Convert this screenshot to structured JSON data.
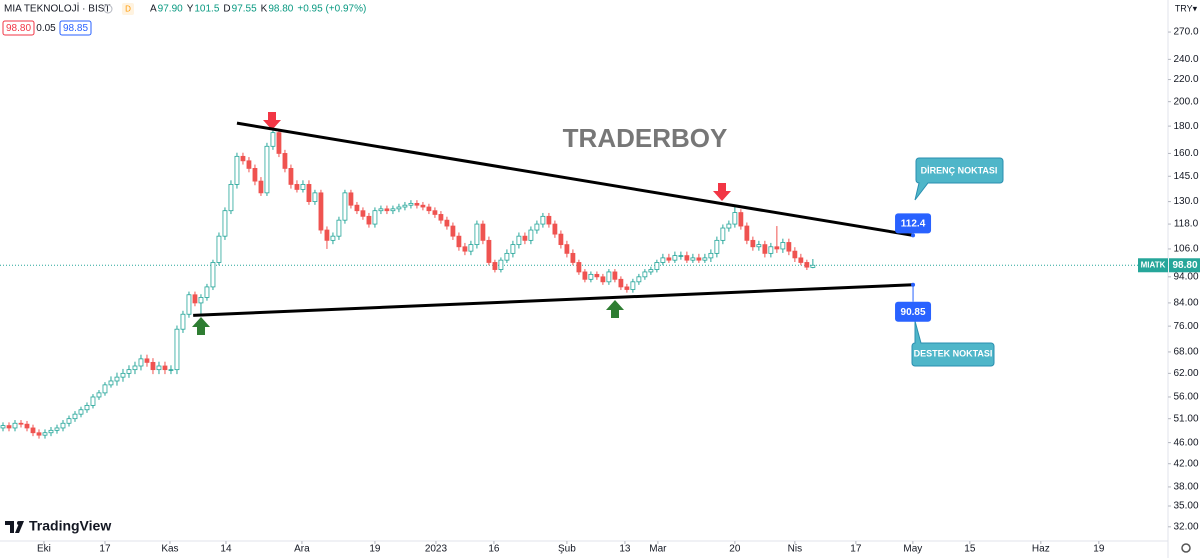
{
  "header": {
    "symbol": "MIA TEKNOLOJİ · BIST",
    "interval": "D",
    "ohlc": [
      {
        "key": "A",
        "value": "97.90"
      },
      {
        "key": "Y",
        "value": "101.5"
      },
      {
        "key": "D",
        "value": "97.55"
      },
      {
        "key": "K",
        "value": "98.80"
      }
    ],
    "change": "+0.95 (+0.97%)",
    "badges": [
      "98.80",
      "0.05",
      "98.85"
    ],
    "currency": "TRY▾",
    "brand": "TradingView"
  },
  "chart_data": {
    "type": "candlestick",
    "log_scale": true,
    "grid": false,
    "up_color": "#26a69a",
    "down_color": "#ef5350",
    "open": [
      49.0,
      49.5,
      49,
      50,
      49.8,
      49,
      48,
      47.5,
      48,
      48.5,
      49,
      50,
      51,
      52,
      53,
      54,
      56,
      57,
      59,
      60,
      61,
      62,
      63,
      64,
      66,
      65,
      63,
      64,
      63,
      63,
      75,
      80,
      87,
      84,
      86,
      90,
      100,
      112,
      125,
      140,
      158,
      155,
      150,
      142,
      135,
      165,
      175,
      160,
      150,
      140,
      137,
      140,
      130,
      135,
      115,
      110,
      112,
      120,
      135,
      128,
      125,
      122,
      118,
      125,
      126,
      125,
      126,
      127,
      128,
      129,
      128,
      127,
      125,
      123,
      120,
      117,
      112,
      107,
      105,
      108,
      118,
      110,
      100,
      97,
      101,
      104,
      108,
      112,
      110,
      115,
      118,
      122,
      118,
      113,
      108,
      104,
      100,
      96,
      93,
      95,
      94,
      92,
      96,
      93,
      90,
      89,
      92,
      94,
      96,
      97,
      100,
      102,
      101,
      103,
      103,
      101,
      102,
      101,
      102,
      104,
      110,
      116,
      118,
      124,
      117,
      110,
      107,
      108,
      104,
      107,
      106,
      109,
      105,
      102,
      100,
      97.9
    ],
    "high": [
      50.2,
      50.2,
      50.7,
      50.7,
      50.5,
      49.7,
      48.7,
      48.7,
      49.2,
      49.7,
      50.7,
      51.7,
      52.7,
      53.7,
      54.7,
      56.7,
      57.7,
      59.7,
      61.2,
      62.2,
      63.2,
      64.2,
      65.2,
      67.2,
      67.2,
      66.2,
      65.2,
      65.2,
      64.2,
      76.2,
      81.2,
      88.2,
      88.2,
      87.2,
      91.2,
      101.2,
      113.8,
      126.8,
      142.5,
      160.5,
      160.5,
      157.5,
      152.5,
      144.5,
      167.5,
      180,
      177.5,
      162.5,
      152.5,
      142.5,
      142.5,
      142.5,
      136.8,
      136.8,
      116.8,
      113.8,
      121.8,
      136.8,
      136.8,
      129.8,
      126.8,
      123.8,
      126.8,
      127.8,
      127.8,
      127.8,
      128.8,
      129.8,
      130.8,
      130.8,
      129.8,
      128.8,
      126.8,
      124.8,
      121.8,
      118.8,
      113.8,
      108.8,
      109.8,
      119.8,
      119.8,
      111.8,
      101.2,
      102.2,
      105.8,
      109.8,
      113.8,
      113.8,
      116.8,
      119.8,
      123.8,
      123.8,
      119.8,
      114.8,
      109.8,
      105.8,
      101.2,
      97.2,
      96.2,
      96.2,
      95.2,
      97.2,
      97.2,
      94.2,
      91.2,
      93.2,
      95.2,
      97.2,
      98.2,
      101.2,
      103.8,
      103.8,
      104.8,
      104.8,
      104.8,
      103.8,
      103.8,
      103.8,
      105.8,
      111.8,
      117.8,
      119.8,
      127,
      125.8,
      118.8,
      111.8,
      109.8,
      109.8,
      108.8,
      117,
      110.8,
      110.8,
      106.8,
      103.8,
      101.2,
      101.5
    ],
    "low": [
      48.3,
      48.3,
      48.3,
      49.1,
      48.3,
      47.3,
      46.8,
      46.8,
      47.3,
      47.8,
      48.3,
      49.3,
      50.3,
      51.3,
      52.3,
      53.3,
      55.3,
      56.3,
      58.3,
      58.8,
      59.8,
      60.8,
      61.8,
      62.8,
      63.8,
      61.8,
      61.8,
      61.8,
      61.8,
      61.8,
      73.8,
      78.8,
      82.8,
      80,
      84.8,
      88.8,
      98.8,
      110.2,
      123.2,
      137.5,
      152.5,
      147.5,
      139.5,
      133.2,
      133.2,
      162.5,
      157.5,
      147.5,
      137.5,
      135.2,
      135.2,
      128.2,
      128.2,
      113.2,
      106,
      108.2,
      110.2,
      118.2,
      126.2,
      123.2,
      120.2,
      116.2,
      116.2,
      123.2,
      123.2,
      123.2,
      124.2,
      125.2,
      126.2,
      126.2,
      125.2,
      123.2,
      121.2,
      118.2,
      115.2,
      110.2,
      105.2,
      103.2,
      103.2,
      106.2,
      108.2,
      98.8,
      95.8,
      95.8,
      99.8,
      102.2,
      106.2,
      108.2,
      108.2,
      113.2,
      116.2,
      116.2,
      111.2,
      106.2,
      102.2,
      98.8,
      94.8,
      91.8,
      91.8,
      92.8,
      90.8,
      90.8,
      91.8,
      88.8,
      87.8,
      87.8,
      90.8,
      92.8,
      94.8,
      95.8,
      98.8,
      99.8,
      99.8,
      101.2,
      99.8,
      99.8,
      99.8,
      99.8,
      100.2,
      102.2,
      108.2,
      114.2,
      116.2,
      115.2,
      108.2,
      105.2,
      105.2,
      102.2,
      102.2,
      104.2,
      104.2,
      103.2,
      100.2,
      98.8,
      96.8,
      97.55
    ],
    "close": [
      49.5,
      49,
      50,
      49.8,
      49,
      48,
      47.5,
      48,
      48.5,
      49,
      50,
      51,
      52,
      53,
      54,
      56,
      57,
      59,
      60,
      61,
      62,
      63,
      64,
      66,
      65,
      63,
      64,
      63,
      63,
      75,
      80,
      87,
      84,
      86,
      90,
      100,
      112,
      125,
      140,
      158,
      155,
      150,
      142,
      135,
      165,
      175,
      160,
      150,
      140,
      137,
      140,
      130,
      135,
      115,
      110,
      112,
      120,
      135,
      128,
      125,
      122,
      118,
      125,
      126,
      125,
      126,
      127,
      128,
      129,
      128,
      127,
      125,
      123,
      120,
      117,
      112,
      107,
      105,
      108,
      118,
      110,
      100,
      97,
      101,
      104,
      108,
      112,
      110,
      115,
      118,
      122,
      118,
      113,
      108,
      104,
      100,
      96,
      93,
      95,
      94,
      92,
      96,
      93,
      90,
      89,
      92,
      94,
      96,
      97,
      100,
      102,
      101,
      103,
      103,
      101,
      102,
      101,
      102,
      104,
      110,
      116,
      118,
      124,
      117,
      110,
      107,
      108,
      104,
      107,
      106,
      109,
      105,
      102,
      100,
      98,
      98.8
    ],
    "xlim": [
      -0.5,
      194.2
    ],
    "xticks": [
      {
        "value": 6.83,
        "label": "Eki"
      },
      {
        "value": 17,
        "label": "17"
      },
      {
        "value": 27.83,
        "label": "Kas"
      },
      {
        "value": 37.17,
        "label": "14"
      },
      {
        "value": 49.83,
        "label": "Ara"
      },
      {
        "value": 62,
        "label": "19"
      },
      {
        "value": 72.17,
        "label": "2023"
      },
      {
        "value": 81.83,
        "label": "16"
      },
      {
        "value": 94,
        "label": "Şub"
      },
      {
        "value": 103.67,
        "label": "13"
      },
      {
        "value": 109.17,
        "label": "Mar"
      },
      {
        "value": 122,
        "label": "20"
      },
      {
        "value": 132,
        "label": "Nis"
      },
      {
        "value": 142.17,
        "label": "17"
      },
      {
        "value": 151.67,
        "label": "May"
      },
      {
        "value": 161.17,
        "label": "15"
      },
      {
        "value": 173,
        "label": "Haz"
      },
      {
        "value": 182.67,
        "label": "19"
      }
    ],
    "ylim": [
      30.1,
      310
    ],
    "yticks": [
      {
        "value": 270,
        "label": "270.0"
      },
      {
        "value": 240,
        "label": "240.0"
      },
      {
        "value": 220,
        "label": "220.0"
      },
      {
        "value": 200,
        "label": "200.0"
      },
      {
        "value": 180,
        "label": "180.0"
      },
      {
        "value": 160,
        "label": "160.0"
      },
      {
        "value": 145,
        "label": "145.0"
      },
      {
        "value": 130,
        "label": "130.0"
      },
      {
        "value": 118,
        "label": "118.0"
      },
      {
        "value": 106,
        "label": "106.0"
      },
      {
        "value": 94,
        "label": "94.00"
      },
      {
        "value": 84,
        "label": "84.00"
      },
      {
        "value": 76,
        "label": "76.00"
      },
      {
        "value": 68,
        "label": "68.00"
      },
      {
        "value": 62,
        "label": "62.00"
      },
      {
        "value": 56,
        "label": "56.00"
      },
      {
        "value": 51,
        "label": "51.00"
      },
      {
        "value": 46,
        "label": "46.00"
      },
      {
        "value": 42,
        "label": "42.00"
      },
      {
        "value": 38,
        "label": "38.00"
      },
      {
        "value": 35,
        "label": "35.00"
      },
      {
        "value": 32,
        "label": "32.00"
      }
    ],
    "last_price": {
      "symbol": "MIATK",
      "value": 98.8,
      "label": "98.80"
    },
    "trendlines": [
      {
        "x": [
          39,
          151.7
        ],
        "y": [
          182.3,
          112.4
        ],
        "color": "#000000"
      },
      {
        "x": [
          31.7,
          151.7
        ],
        "y": [
          79.6,
          90.85
        ],
        "color": "#000000"
      }
    ],
    "annotations": {
      "watermark": "TRADERBOY",
      "resistance": "DİRENÇ NOKTASI",
      "support": "DESTEK NOKTASI"
    }
  }
}
